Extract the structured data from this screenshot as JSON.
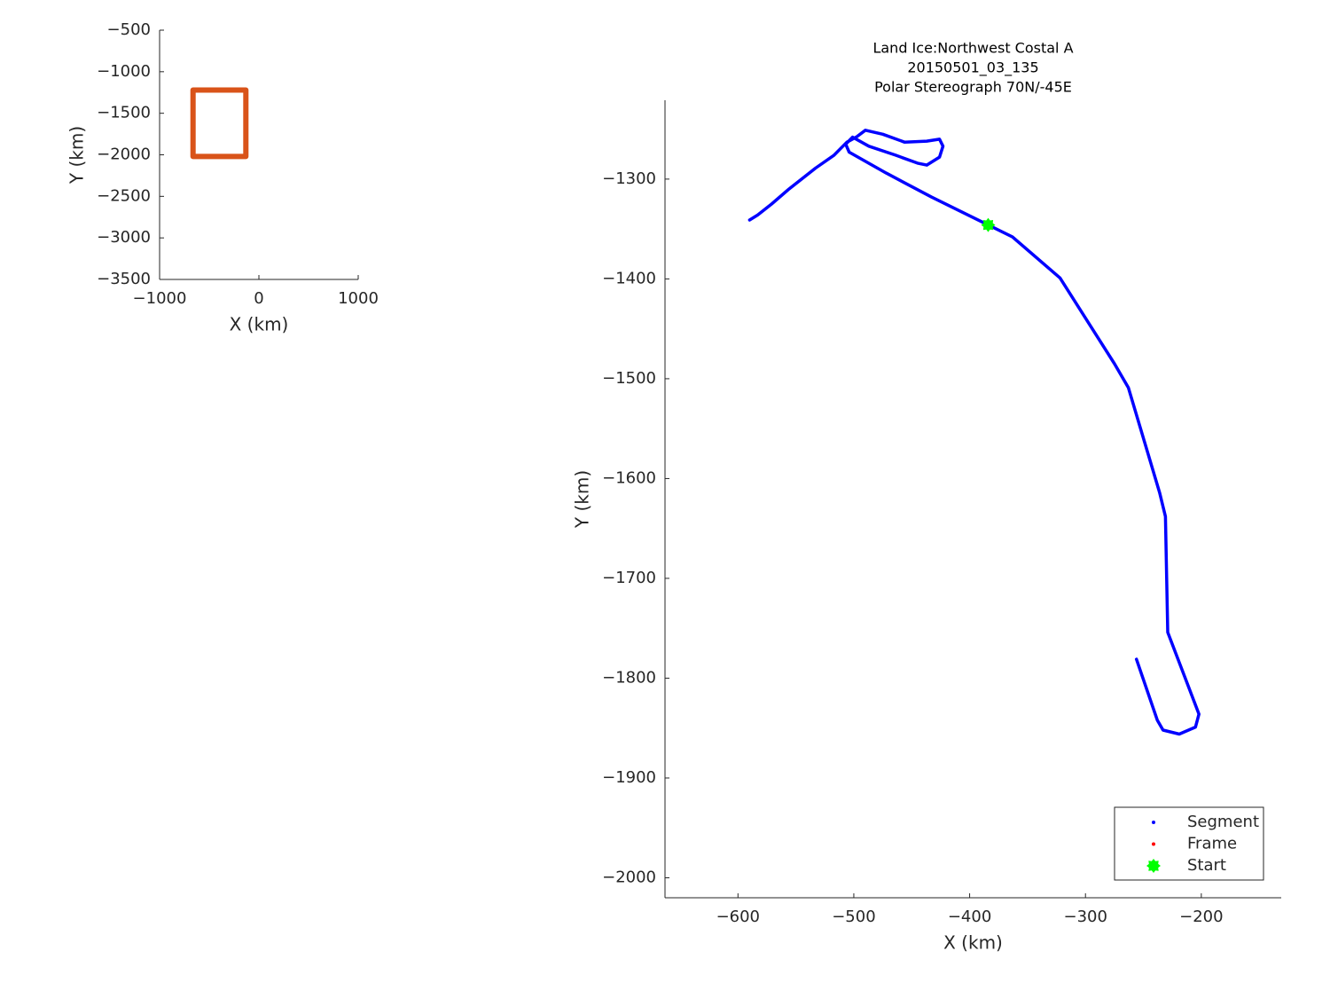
{
  "chart_data": [
    {
      "type": "line",
      "xlabel": "X (km)",
      "ylabel": "Y (km)",
      "xlim": [
        -1000,
        1000
      ],
      "ylim": [
        -3500,
        -500
      ],
      "xticks": [
        {
          "value": -1000,
          "label": "−1000"
        },
        0,
        1000
      ],
      "yticks": [
        {
          "value": -500,
          "label": "−500"
        },
        {
          "value": -1000,
          "label": "−1000"
        },
        {
          "value": -1500,
          "label": "−1500"
        },
        {
          "value": -2000,
          "label": "−2000"
        },
        {
          "value": -2500,
          "label": "−2500"
        },
        {
          "value": -3000,
          "label": "−3000"
        },
        {
          "value": -3500,
          "label": "−3500"
        }
      ],
      "series": [
        {
          "color": "#d95319",
          "marker": "line",
          "x": [
            -663,
            -131,
            -131,
            -663,
            -663
          ],
          "values": [
            -1221,
            -1221,
            -2020,
            -2020,
            -1221
          ]
        }
      ]
    },
    {
      "type": "line",
      "title": [
        "Land Ice:Northwest Costal A",
        "20150501_03_135",
        "Polar Stereograph 70N/-45E"
      ],
      "xlabel": "X (km)",
      "ylabel": "Y (km)",
      "xlim": [
        -663,
        -131
      ],
      "ylim": [
        -2020,
        -1221
      ],
      "xticks": [
        {
          "value": -600,
          "label": "−600"
        },
        {
          "value": -500,
          "label": "−500"
        },
        {
          "value": -400,
          "label": "−400"
        },
        {
          "value": -300,
          "label": "−300"
        },
        {
          "value": -200,
          "label": "−200"
        }
      ],
      "yticks": [
        {
          "value": -1300,
          "label": "−1300"
        },
        {
          "value": -1400,
          "label": "−1400"
        },
        {
          "value": -1500,
          "label": "−1500"
        },
        {
          "value": -1600,
          "label": "−1600"
        },
        {
          "value": -1700,
          "label": "−1700"
        },
        {
          "value": -1800,
          "label": "−1800"
        },
        {
          "value": -1900,
          "label": "−1900"
        },
        {
          "value": -2000,
          "label": "−2000"
        }
      ],
      "legend": "southeast",
      "series": [
        {
          "name": "Segment",
          "color": "#0000ff",
          "marker": "point",
          "x": [
            -590,
            -583,
            -571,
            -556,
            -533,
            -517,
            -506,
            -498,
            -490,
            -475,
            -456,
            -437,
            -426,
            -423,
            -426,
            -437,
            -445,
            -464,
            -487,
            -501,
            -507,
            -504,
            -472,
            -433,
            -384,
            -363,
            -322,
            -275,
            -263,
            -236,
            -231,
            -229,
            -202,
            -205,
            -219,
            -233,
            -238,
            -256
          ],
          "values": [
            -1341,
            -1336,
            -1325,
            -1310,
            -1289,
            -1276,
            -1263,
            -1258,
            -1251,
            -1255,
            -1263,
            -1262,
            -1260,
            -1267,
            -1278,
            -1286,
            -1284,
            -1276,
            -1267,
            -1258,
            -1265,
            -1273,
            -1294,
            -1318,
            -1346,
            -1358,
            -1399,
            -1485,
            -1509,
            -1614,
            -1638,
            -1754,
            -1836,
            -1849,
            -1856,
            -1852,
            -1842,
            -1781
          ]
        },
        {
          "name": "Frame",
          "color": "#ff0000",
          "marker": "point",
          "x": [],
          "values": []
        },
        {
          "name": "Start",
          "color": "#00ff00",
          "marker": "star",
          "x": [
            -384
          ],
          "values": [
            -1346
          ]
        }
      ]
    }
  ]
}
